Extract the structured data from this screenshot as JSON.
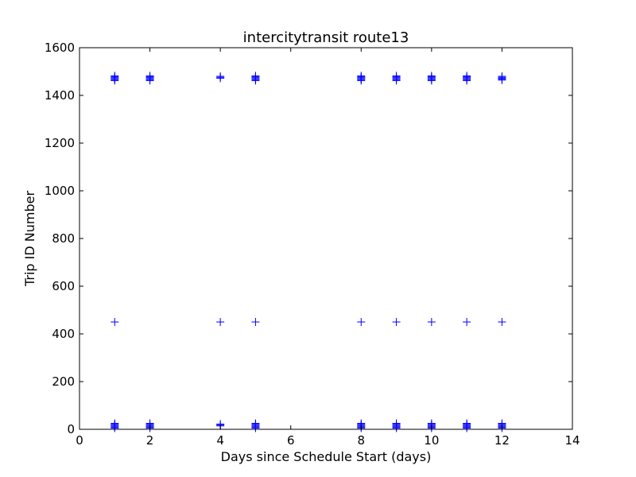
{
  "chart_data": {
    "type": "scatter",
    "title": "intercitytransit route13",
    "xlabel": "Days since Schedule Start (days)",
    "ylabel": "Trip ID Number",
    "xlim": [
      0,
      14
    ],
    "ylim": [
      0,
      1600
    ],
    "xticks": [
      0,
      2,
      4,
      6,
      8,
      10,
      12,
      14
    ],
    "yticks": [
      0,
      200,
      400,
      600,
      800,
      1000,
      1200,
      1400,
      1600
    ],
    "grid": false,
    "marker": "+",
    "color": "#0000ff",
    "series": [
      {
        "points": [
          {
            "x": 1,
            "y": 1462
          },
          {
            "x": 1,
            "y": 1466
          },
          {
            "x": 1,
            "y": 1470
          },
          {
            "x": 1,
            "y": 1474
          },
          {
            "x": 1,
            "y": 1478
          },
          {
            "x": 1,
            "y": 1482
          },
          {
            "x": 1,
            "y": 450
          },
          {
            "x": 1,
            "y": 5
          },
          {
            "x": 1,
            "y": 9
          },
          {
            "x": 1,
            "y": 13
          },
          {
            "x": 1,
            "y": 17
          },
          {
            "x": 1,
            "y": 21
          },
          {
            "x": 1,
            "y": 25
          },
          {
            "x": 2,
            "y": 1462
          },
          {
            "x": 2,
            "y": 1466
          },
          {
            "x": 2,
            "y": 1470
          },
          {
            "x": 2,
            "y": 1474
          },
          {
            "x": 2,
            "y": 1478
          },
          {
            "x": 2,
            "y": 1482
          },
          {
            "x": 2,
            "y": 5
          },
          {
            "x": 2,
            "y": 9
          },
          {
            "x": 2,
            "y": 13
          },
          {
            "x": 2,
            "y": 17
          },
          {
            "x": 2,
            "y": 21
          },
          {
            "x": 2,
            "y": 25
          },
          {
            "x": 4,
            "y": 1472
          },
          {
            "x": 4,
            "y": 1476
          },
          {
            "x": 4,
            "y": 1480
          },
          {
            "x": 4,
            "y": 450
          },
          {
            "x": 4,
            "y": 14
          },
          {
            "x": 4,
            "y": 18
          },
          {
            "x": 4,
            "y": 22
          },
          {
            "x": 5,
            "y": 1462
          },
          {
            "x": 5,
            "y": 1466
          },
          {
            "x": 5,
            "y": 1470
          },
          {
            "x": 5,
            "y": 1474
          },
          {
            "x": 5,
            "y": 1478
          },
          {
            "x": 5,
            "y": 1482
          },
          {
            "x": 5,
            "y": 450
          },
          {
            "x": 5,
            "y": 5
          },
          {
            "x": 5,
            "y": 9
          },
          {
            "x": 5,
            "y": 13
          },
          {
            "x": 5,
            "y": 17
          },
          {
            "x": 5,
            "y": 21
          },
          {
            "x": 5,
            "y": 25
          },
          {
            "x": 8,
            "y": 1462
          },
          {
            "x": 8,
            "y": 1466
          },
          {
            "x": 8,
            "y": 1470
          },
          {
            "x": 8,
            "y": 1474
          },
          {
            "x": 8,
            "y": 1478
          },
          {
            "x": 8,
            "y": 1482
          },
          {
            "x": 8,
            "y": 450
          },
          {
            "x": 8,
            "y": 5
          },
          {
            "x": 8,
            "y": 9
          },
          {
            "x": 8,
            "y": 13
          },
          {
            "x": 8,
            "y": 17
          },
          {
            "x": 8,
            "y": 21
          },
          {
            "x": 8,
            "y": 25
          },
          {
            "x": 9,
            "y": 1462
          },
          {
            "x": 9,
            "y": 1466
          },
          {
            "x": 9,
            "y": 1470
          },
          {
            "x": 9,
            "y": 1474
          },
          {
            "x": 9,
            "y": 1478
          },
          {
            "x": 9,
            "y": 1482
          },
          {
            "x": 9,
            "y": 450
          },
          {
            "x": 9,
            "y": 5
          },
          {
            "x": 9,
            "y": 9
          },
          {
            "x": 9,
            "y": 13
          },
          {
            "x": 9,
            "y": 17
          },
          {
            "x": 9,
            "y": 21
          },
          {
            "x": 9,
            "y": 25
          },
          {
            "x": 10,
            "y": 1462
          },
          {
            "x": 10,
            "y": 1466
          },
          {
            "x": 10,
            "y": 1470
          },
          {
            "x": 10,
            "y": 1474
          },
          {
            "x": 10,
            "y": 1478
          },
          {
            "x": 10,
            "y": 1482
          },
          {
            "x": 10,
            "y": 450
          },
          {
            "x": 10,
            "y": 5
          },
          {
            "x": 10,
            "y": 9
          },
          {
            "x": 10,
            "y": 13
          },
          {
            "x": 10,
            "y": 17
          },
          {
            "x": 10,
            "y": 21
          },
          {
            "x": 10,
            "y": 25
          },
          {
            "x": 11,
            "y": 1462
          },
          {
            "x": 11,
            "y": 1466
          },
          {
            "x": 11,
            "y": 1470
          },
          {
            "x": 11,
            "y": 1474
          },
          {
            "x": 11,
            "y": 1478
          },
          {
            "x": 11,
            "y": 1482
          },
          {
            "x": 11,
            "y": 450
          },
          {
            "x": 11,
            "y": 5
          },
          {
            "x": 11,
            "y": 9
          },
          {
            "x": 11,
            "y": 13
          },
          {
            "x": 11,
            "y": 17
          },
          {
            "x": 11,
            "y": 21
          },
          {
            "x": 11,
            "y": 25
          },
          {
            "x": 12,
            "y": 1464
          },
          {
            "x": 12,
            "y": 1468
          },
          {
            "x": 12,
            "y": 1472
          },
          {
            "x": 12,
            "y": 1476
          },
          {
            "x": 12,
            "y": 1480
          },
          {
            "x": 12,
            "y": 450
          },
          {
            "x": 12,
            "y": 5
          },
          {
            "x": 12,
            "y": 9
          },
          {
            "x": 12,
            "y": 13
          },
          {
            "x": 12,
            "y": 17
          },
          {
            "x": 12,
            "y": 21
          },
          {
            "x": 12,
            "y": 25
          }
        ]
      }
    ]
  }
}
